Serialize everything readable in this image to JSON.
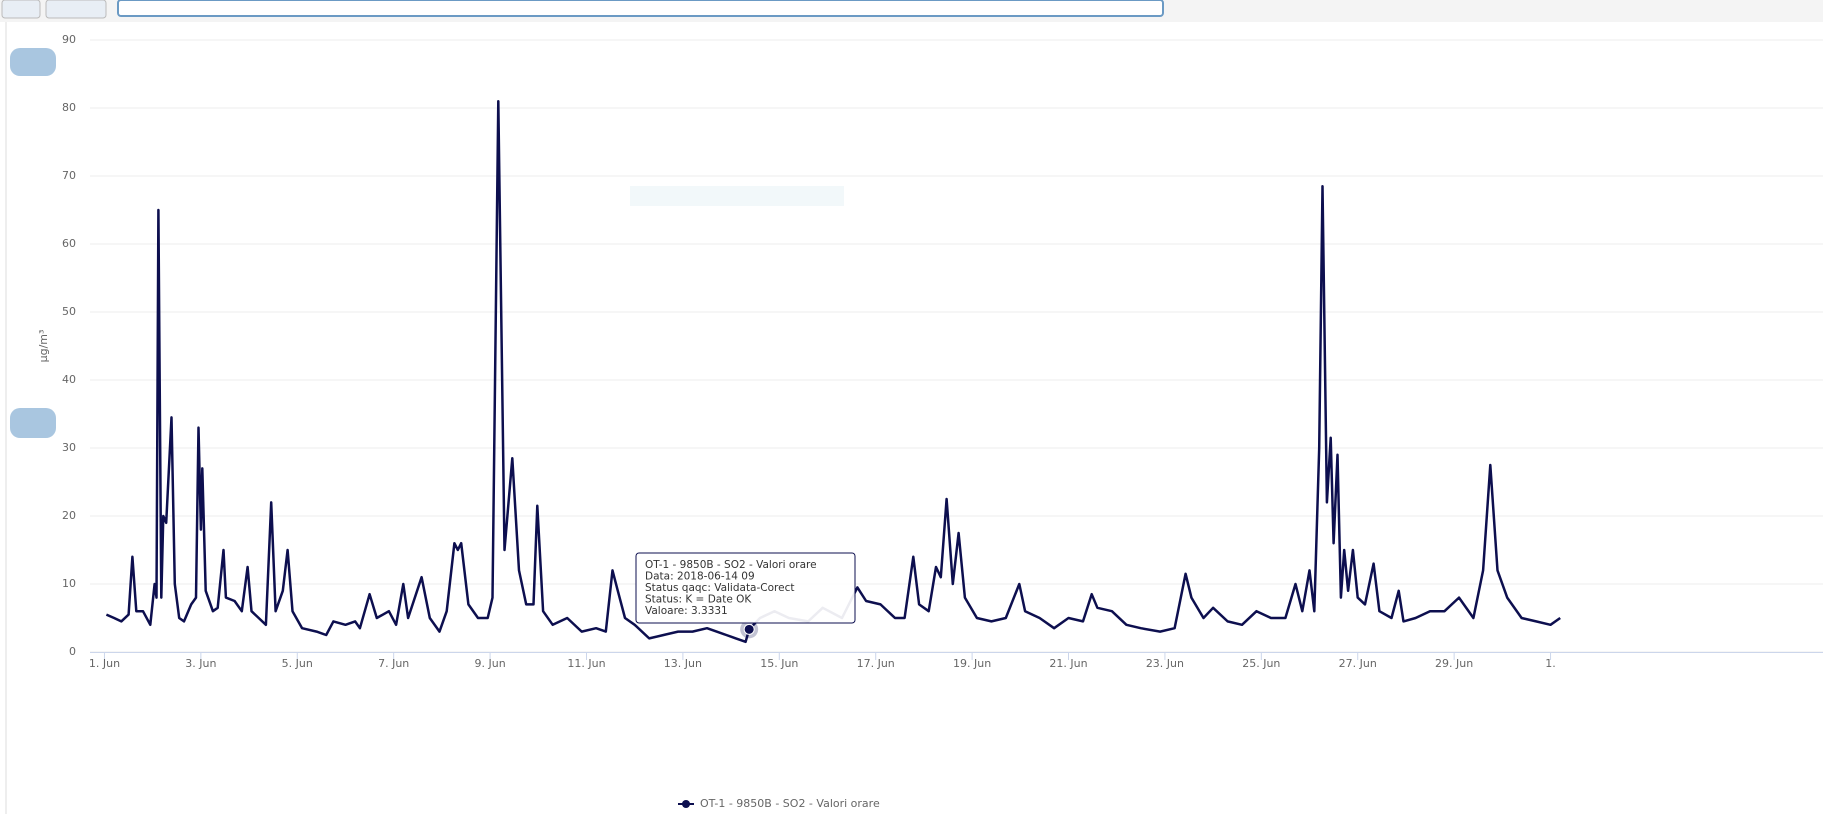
{
  "chart_data": {
    "type": "line",
    "y_label": "µg/m³",
    "xlim": [
      0.7,
      31.3
    ],
    "xticks": [
      {
        "value": 1,
        "label": "1. Jun"
      },
      {
        "value": 3,
        "label": "3. Jun"
      },
      {
        "value": 5,
        "label": "5. Jun"
      },
      {
        "value": 7,
        "label": "7. Jun"
      },
      {
        "value": 9,
        "label": "9. Jun"
      },
      {
        "value": 11,
        "label": "11. Jun"
      },
      {
        "value": 13,
        "label": "13. Jun"
      },
      {
        "value": 15,
        "label": "15. Jun"
      },
      {
        "value": 17,
        "label": "17. Jun"
      },
      {
        "value": 19,
        "label": "19. Jun"
      },
      {
        "value": 21,
        "label": "21. Jun"
      },
      {
        "value": 23,
        "label": "23. Jun"
      },
      {
        "value": 25,
        "label": "25. Jun"
      },
      {
        "value": 27,
        "label": "27. Jun"
      },
      {
        "value": 29,
        "label": "29. Jun"
      },
      {
        "value": 31,
        "label": "1."
      }
    ],
    "ylim": [
      0,
      90
    ],
    "yticks": [
      0,
      10,
      20,
      30,
      40,
      50,
      60,
      70,
      80,
      90
    ],
    "grid": true,
    "x": [
      1.04,
      1.2,
      1.35,
      1.5,
      1.58,
      1.66,
      1.8,
      1.95,
      2.04,
      2.08,
      2.12,
      2.18,
      2.22,
      2.28,
      2.39,
      2.46,
      2.55,
      2.65,
      2.8,
      2.9,
      2.95,
      3.0,
      3.03,
      3.1,
      3.25,
      3.35,
      3.47,
      3.52,
      3.7,
      3.85,
      3.97,
      4.05,
      4.2,
      4.35,
      4.46,
      4.55,
      4.7,
      4.8,
      4.9,
      5.1,
      5.4,
      5.6,
      5.75,
      6.0,
      6.2,
      6.3,
      6.5,
      6.65,
      6.9,
      7.05,
      7.2,
      7.3,
      7.58,
      7.75,
      7.95,
      8.1,
      8.26,
      8.33,
      8.4,
      8.55,
      8.75,
      8.95,
      9.05,
      9.17,
      9.3,
      9.46,
      9.6,
      9.75,
      9.9,
      9.98,
      10.1,
      10.3,
      10.6,
      10.9,
      11.2,
      11.4,
      11.54,
      11.65,
      11.8,
      12.0,
      12.3,
      12.6,
      12.9,
      13.2,
      13.5,
      13.7,
      13.9,
      14.1,
      14.3,
      14.375,
      14.6,
      14.9,
      15.2,
      15.6,
      15.9,
      16.3,
      16.62,
      16.8,
      17.1,
      17.4,
      17.6,
      17.78,
      17.9,
      18.1,
      18.25,
      18.35,
      18.47,
      18.6,
      18.72,
      18.85,
      19.1,
      19.4,
      19.7,
      19.98,
      20.1,
      20.4,
      20.7,
      21.0,
      21.3,
      21.48,
      21.6,
      21.9,
      22.2,
      22.5,
      22.9,
      23.2,
      23.43,
      23.55,
      23.8,
      24.0,
      24.3,
      24.6,
      24.9,
      25.2,
      25.5,
      25.71,
      25.85,
      26.0,
      26.1,
      26.2,
      26.27,
      26.36,
      26.44,
      26.5,
      26.58,
      26.65,
      26.72,
      26.8,
      26.9,
      27.0,
      27.15,
      27.33,
      27.45,
      27.7,
      27.85,
      27.95,
      28.2,
      28.5,
      28.8,
      29.1,
      29.4,
      29.6,
      29.75,
      29.9,
      30.1,
      30.4,
      30.7,
      31.0,
      31.2
    ],
    "series": [
      {
        "name": "OT-1 - 9850B - SO2 - Valori orare",
        "color": "#0d0f4f",
        "values": [
          5.5,
          5,
          4.5,
          5.5,
          14,
          6,
          6,
          4,
          10,
          8,
          65,
          8,
          20,
          19,
          34.5,
          10,
          5,
          4.5,
          7,
          8,
          33,
          18,
          27,
          9,
          6,
          6.5,
          15,
          8,
          7.5,
          6,
          12.5,
          6,
          5,
          4,
          22,
          6,
          9,
          15,
          6,
          3.5,
          3,
          2.5,
          4.5,
          4,
          4.5,
          3.5,
          8.5,
          5,
          6,
          4,
          10,
          5,
          11,
          5,
          3,
          6,
          16,
          15,
          16,
          7,
          5,
          5,
          8,
          81,
          15,
          28.5,
          12,
          7,
          7,
          21.5,
          6,
          4,
          5,
          3,
          3.5,
          3,
          12,
          9,
          5,
          4,
          2,
          2.5,
          3,
          3,
          3.5,
          3,
          2.5,
          2,
          1.5,
          3.3331,
          5,
          6,
          5,
          4.5,
          6.5,
          5,
          9.5,
          7.5,
          7,
          5,
          5,
          14,
          7,
          6,
          12.5,
          11,
          22.5,
          10,
          17.5,
          8,
          5,
          4.5,
          5,
          10,
          6,
          5,
          3.5,
          5,
          4.5,
          8.5,
          6.5,
          6,
          4,
          3.5,
          3,
          3.5,
          11.5,
          8,
          5,
          6.5,
          4.5,
          4,
          6,
          5,
          5,
          10,
          6,
          12,
          6,
          30,
          68.5,
          22,
          31.5,
          16,
          29,
          8,
          15,
          9,
          15,
          8,
          7,
          13,
          6,
          5,
          9,
          4.5,
          5,
          6,
          6,
          8,
          5,
          12,
          27.5,
          12,
          8,
          5,
          4.5,
          4,
          5
        ]
      }
    ],
    "tooltip": [
      "OT-1 - 9850B - SO2 - Valori orare",
      "Data: 2018-06-14 09",
      "Status qaqc: Validata-Corect",
      "Status: K = Date OK",
      "Valoare: 3.3331"
    ]
  }
}
